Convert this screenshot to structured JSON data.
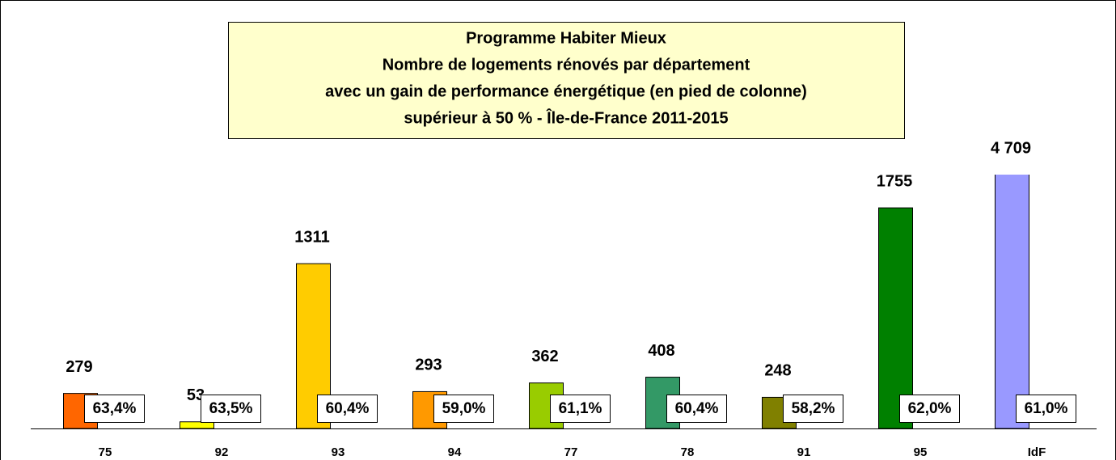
{
  "chart_data": {
    "type": "bar",
    "title": [
      "Programme Habiter Mieux",
      "Nombre de logements rénovés par département",
      "avec un gain de performance énergétique (en pied de colonne)",
      "supérieur à 50 % - Île-de-France 2011-2015"
    ],
    "categories": [
      "75",
      "92",
      "93",
      "94",
      "77",
      "78",
      "91",
      "95",
      "IdF"
    ],
    "values": [
      279,
      53,
      1311,
      293,
      362,
      408,
      248,
      1755,
      4709
    ],
    "value_labels": [
      "279",
      "53",
      "1311",
      "293",
      "362",
      "408",
      "248",
      "1755",
      "4 709"
    ],
    "colors": [
      "#ff6600",
      "#ffff00",
      "#ffcc00",
      "#ff9900",
      "#99cc00",
      "#339966",
      "#808000",
      "#008000",
      "#9999ff"
    ],
    "gain_values": [
      63.4,
      63.5,
      60.4,
      59.0,
      61.1,
      60.4,
      58.2,
      62.0,
      61.0
    ],
    "gain_labels": [
      "63,4%",
      "63,5%",
      "60,4%",
      "59,0%",
      "61,1%",
      "60,4%",
      "58,2%",
      "62,0%",
      "61,0%"
    ],
    "ylim": [
      0,
      2000
    ]
  }
}
